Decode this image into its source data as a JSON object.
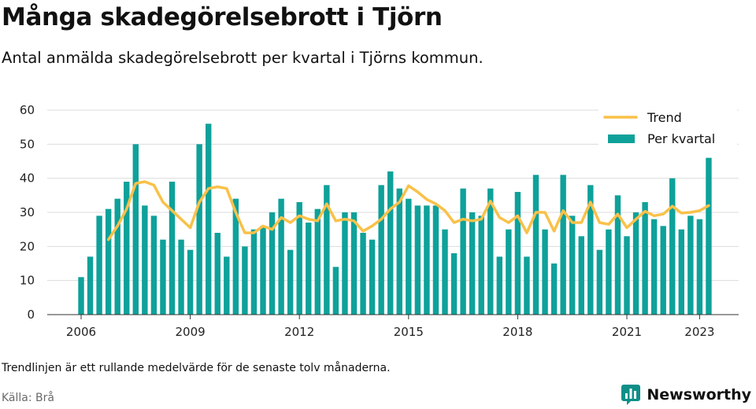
{
  "header": {
    "title": "Många skadegörelsebrott i Tjörn",
    "subtitle": "Antal anmälda skadegörelsebrott per kvartal i Tjörns kommun."
  },
  "footer": {
    "note": "Trendlinjen är ett rullande medelvärde för de senaste tolv månaderna.",
    "source": "Källa: Brå",
    "logo_text": "Newsworthy"
  },
  "colors": {
    "bar": "#0ea19a",
    "trend": "#f9c149",
    "grid": "#dcdcdc",
    "axis": "#333333",
    "logo": "#0f8f88"
  },
  "chart_data": {
    "type": "bar",
    "xlabel": "",
    "ylabel": "",
    "ylim": [
      0,
      60
    ],
    "yticks": [
      0,
      10,
      20,
      30,
      40,
      50,
      60
    ],
    "xticks": [
      "2006",
      "2009",
      "2012",
      "2015",
      "2018",
      "2021",
      "2023"
    ],
    "grid": true,
    "legend_position": "top-right",
    "x_unit": "quarter",
    "categories": [
      "2006-Q1",
      "2006-Q2",
      "2006-Q3",
      "2006-Q4",
      "2007-Q1",
      "2007-Q2",
      "2007-Q3",
      "2007-Q4",
      "2008-Q1",
      "2008-Q2",
      "2008-Q3",
      "2008-Q4",
      "2009-Q1",
      "2009-Q2",
      "2009-Q3",
      "2009-Q4",
      "2010-Q1",
      "2010-Q2",
      "2010-Q3",
      "2010-Q4",
      "2011-Q1",
      "2011-Q2",
      "2011-Q3",
      "2011-Q4",
      "2012-Q1",
      "2012-Q2",
      "2012-Q3",
      "2012-Q4",
      "2013-Q1",
      "2013-Q2",
      "2013-Q3",
      "2013-Q4",
      "2014-Q1",
      "2014-Q2",
      "2014-Q3",
      "2014-Q4",
      "2015-Q1",
      "2015-Q2",
      "2015-Q3",
      "2015-Q4",
      "2016-Q1",
      "2016-Q2",
      "2016-Q3",
      "2016-Q4",
      "2017-Q1",
      "2017-Q2",
      "2017-Q3",
      "2017-Q4",
      "2018-Q1",
      "2018-Q2",
      "2018-Q3",
      "2018-Q4",
      "2019-Q1",
      "2019-Q2",
      "2019-Q3",
      "2019-Q4",
      "2020-Q1",
      "2020-Q2",
      "2020-Q3",
      "2020-Q4",
      "2021-Q1",
      "2021-Q2",
      "2021-Q3",
      "2021-Q4",
      "2022-Q1",
      "2022-Q2",
      "2022-Q3",
      "2022-Q4",
      "2023-Q1",
      "2023-Q2"
    ],
    "series": [
      {
        "name": "Per kvartal",
        "type": "bar",
        "values": [
          11,
          17,
          29,
          31,
          34,
          39,
          50,
          32,
          29,
          22,
          39,
          22,
          19,
          50,
          56,
          24,
          17,
          34,
          20,
          25,
          26,
          30,
          34,
          19,
          33,
          27,
          31,
          38,
          14,
          30,
          30,
          24,
          22,
          38,
          42,
          37,
          34,
          32,
          32,
          32,
          25,
          18,
          37,
          30,
          29,
          37,
          17,
          25,
          36,
          17,
          41,
          25,
          15,
          41,
          29,
          23,
          38,
          19,
          25,
          35,
          23,
          30,
          33,
          28,
          26,
          40,
          25,
          29,
          28,
          46
        ]
      },
      {
        "name": "Trend",
        "type": "line",
        "x": [
          "2006-Q4",
          "2007-Q1",
          "2007-Q2",
          "2007-Q3",
          "2007-Q4",
          "2008-Q1",
          "2008-Q2",
          "2008-Q3",
          "2008-Q4",
          "2009-Q1",
          "2009-Q2",
          "2009-Q3",
          "2009-Q4",
          "2010-Q1",
          "2010-Q2",
          "2010-Q3",
          "2010-Q4",
          "2011-Q1",
          "2011-Q2",
          "2011-Q3",
          "2011-Q4",
          "2012-Q1",
          "2012-Q2",
          "2012-Q3",
          "2012-Q4",
          "2013-Q1",
          "2013-Q2",
          "2013-Q3",
          "2013-Q4",
          "2014-Q1",
          "2014-Q2",
          "2014-Q3",
          "2014-Q4",
          "2015-Q1",
          "2015-Q2",
          "2015-Q3",
          "2015-Q4",
          "2016-Q1",
          "2016-Q2",
          "2016-Q3",
          "2016-Q4",
          "2017-Q1",
          "2017-Q2",
          "2017-Q3",
          "2017-Q4",
          "2018-Q1",
          "2018-Q2",
          "2018-Q3",
          "2018-Q4",
          "2019-Q1",
          "2019-Q2",
          "2019-Q3",
          "2019-Q4",
          "2020-Q1",
          "2020-Q2",
          "2020-Q3",
          "2020-Q4",
          "2021-Q1",
          "2021-Q2",
          "2021-Q3",
          "2021-Q4",
          "2022-Q1",
          "2022-Q2",
          "2022-Q3",
          "2022-Q4",
          "2023-Q1",
          "2023-Q2"
        ],
        "values": [
          22,
          26,
          31,
          38.5,
          39,
          38,
          33,
          30.5,
          28,
          25.5,
          33,
          37,
          37.5,
          37,
          30,
          24,
          24,
          26,
          25,
          28.5,
          27,
          29,
          28,
          27.5,
          32.5,
          27.5,
          28,
          27.5,
          24.5,
          26,
          28,
          31,
          33,
          37.8,
          36,
          33.8,
          32.5,
          30.5,
          27,
          28,
          27.5,
          28,
          33.3,
          28.5,
          27,
          29,
          24,
          30,
          30,
          24.5,
          30.5,
          27,
          27,
          33,
          27,
          26.5,
          29.5,
          25.5,
          28,
          30.3,
          29,
          29.5,
          31.8,
          29.8,
          30,
          30.5,
          32
        ]
      }
    ]
  }
}
